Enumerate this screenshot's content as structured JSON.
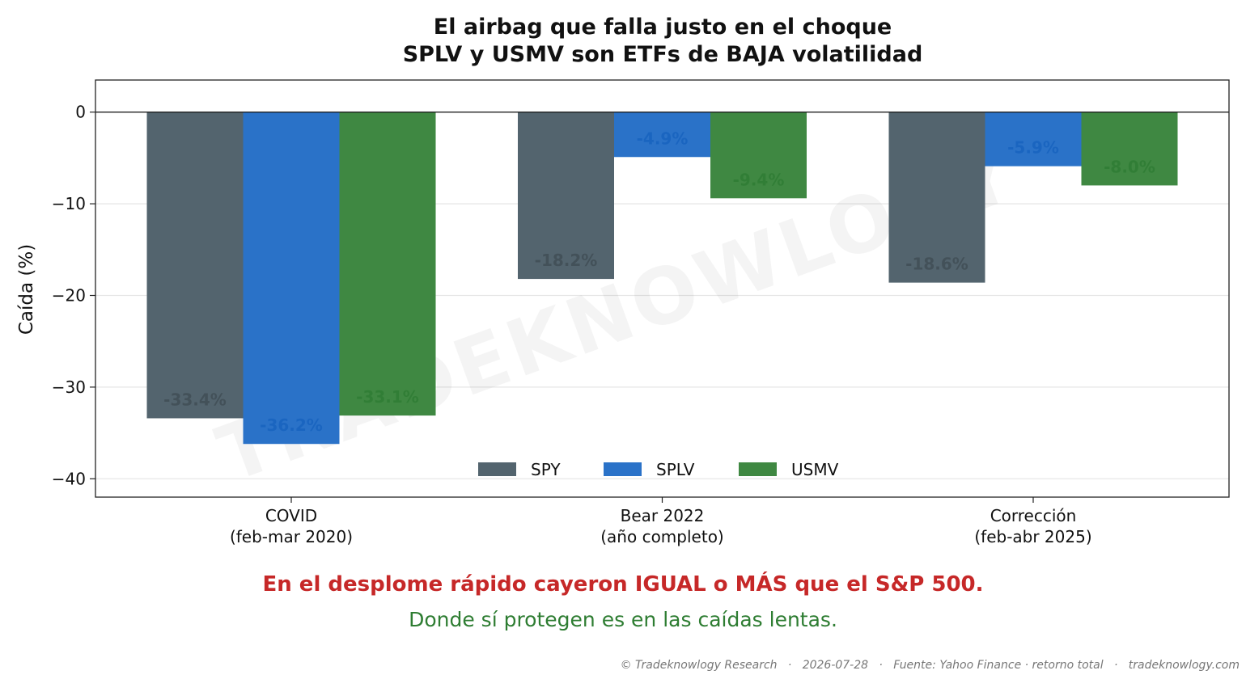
{
  "chart_data": {
    "type": "bar",
    "title": [
      "El airbag que falla justo en el choque",
      "SPLV y USMV son ETFs de BAJA volatilidad"
    ],
    "ylabel": "Caída (%)",
    "xlabel": "",
    "ylim": [
      -42,
      3.5
    ],
    "yticks": [
      0,
      -10,
      -20,
      -30,
      -40
    ],
    "ytick_labels": [
      "0",
      "−10",
      "−20",
      "−30",
      "−40"
    ],
    "grid": "horizontal",
    "legend": {
      "placement": "bottom-center",
      "entries": [
        "SPY",
        "SPLV",
        "USMV"
      ]
    },
    "categories": [
      [
        "COVID",
        "(feb-mar 2020)"
      ],
      [
        "Bear 2022",
        "(año completo)"
      ],
      [
        "Corrección",
        "(feb-abr 2025)"
      ]
    ],
    "series": [
      {
        "name": "SPY",
        "color": "#53646e",
        "label_color": "#3d4a52",
        "values": [
          -33.4,
          -18.2,
          -18.6
        ],
        "labels": [
          "-33.4%",
          "-18.2%",
          "-18.6%"
        ]
      },
      {
        "name": "SPLV",
        "color": "#2a72c8",
        "label_color": "#1560bd",
        "values": [
          -36.2,
          -4.9,
          -5.9
        ],
        "labels": [
          "-36.2%",
          "-4.9%",
          "-5.9%"
        ]
      },
      {
        "name": "USMV",
        "color": "#3f8842",
        "label_color": "#2c7a32",
        "values": [
          -33.1,
          -9.4,
          -8.0
        ],
        "labels": [
          "-33.1%",
          "-9.4%",
          "-8.0%"
        ]
      }
    ]
  },
  "watermark": "TRADEKNOWLOGY",
  "notes": {
    "red": "En el desplome rápido cayeron IGUAL o MÁS que el S&P 500.",
    "green": "Donde sí protegen es en las caídas lentas."
  },
  "footer": "© Tradeknowlogy Research   ·   2026-07-28   ·   Fuente: Yahoo Finance · retorno total   ·   tradeknowlogy.com"
}
